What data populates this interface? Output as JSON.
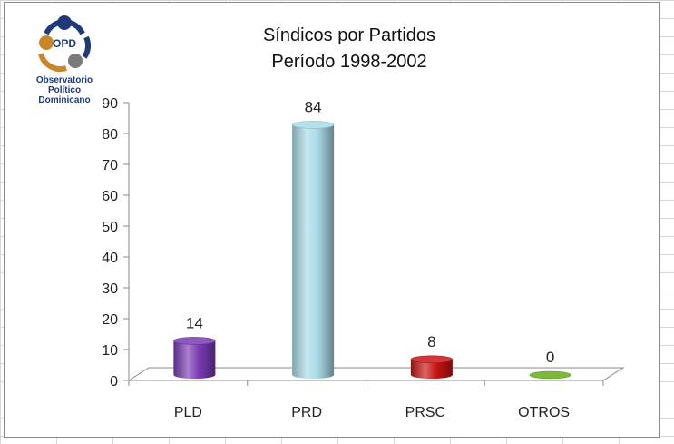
{
  "logo": {
    "initials": "OPD",
    "name_line1": "Observatorio Político",
    "name_line2": "Dominicano"
  },
  "chart_data": {
    "type": "bar",
    "title": "Síndicos por Partidos",
    "subtitle": "Período 1998-2002",
    "categories": [
      "PLD",
      "PRD",
      "PRSC",
      "OTROS"
    ],
    "values": [
      14,
      84,
      8,
      0
    ],
    "value_labels": [
      "14",
      "84",
      "8",
      "0"
    ],
    "colors": [
      "#7a3cb4",
      "#a9dbe8",
      "#c81414",
      "#7cb83a"
    ],
    "ylim": [
      0,
      90
    ],
    "yticks": [
      0,
      10,
      20,
      30,
      40,
      50,
      60,
      70,
      80,
      90
    ],
    "xlabel": "",
    "ylabel": "",
    "grid": false,
    "legend": "none",
    "style": "3d-cylinder"
  }
}
